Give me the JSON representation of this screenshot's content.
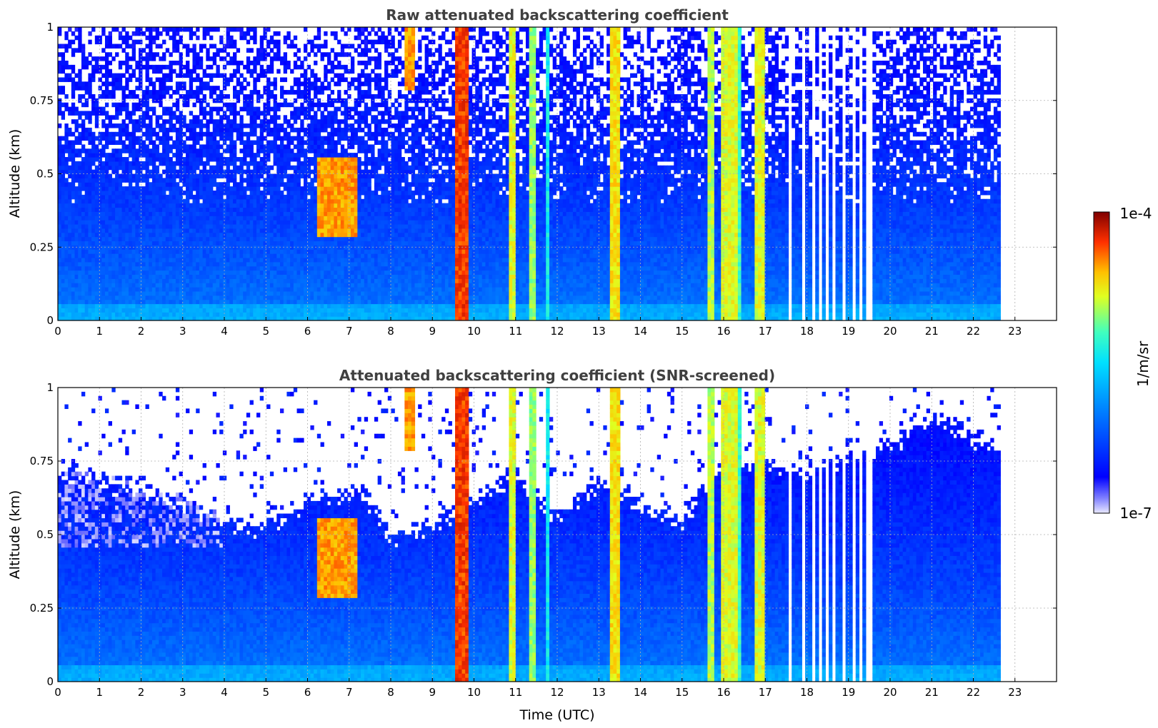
{
  "chart_data": [
    {
      "type": "heatmap",
      "title": "Raw attenuated backscattering coefficient",
      "xlabel": "",
      "ylabel": "Altitude (km)",
      "xlim": [
        0,
        24
      ],
      "ylim": [
        0,
        1
      ],
      "x_ticks": [
        "0",
        "1",
        "2",
        "3",
        "4",
        "5",
        "6",
        "7",
        "8",
        "9",
        "10",
        "11",
        "12",
        "13",
        "14",
        "15",
        "16",
        "17",
        "18",
        "19",
        "20",
        "21",
        "22",
        "23"
      ],
      "y_ticks": [
        "0",
        "0.25",
        "0.5",
        "0.75",
        "1"
      ],
      "data_end_time": 22.65,
      "grid": true,
      "colorscale": "jet-log",
      "background": {
        "surface_level": 1e-06,
        "aloft_level": 2e-07,
        "noisy": true
      },
      "features": [
        {
          "t0": 9.55,
          "t1": 9.85,
          "z0": 0,
          "z1": 1,
          "level": 5e-05
        },
        {
          "t0": 10.85,
          "t1": 11.0,
          "z0": 0,
          "z1": 1,
          "level": 1.5e-05
        },
        {
          "t0": 11.35,
          "t1": 11.5,
          "z0": 0,
          "z1": 1,
          "level": 1e-05
        },
        {
          "t0": 11.75,
          "t1": 11.85,
          "z0": 0,
          "z1": 1,
          "level": 4e-06
        },
        {
          "t0": 13.3,
          "t1": 13.5,
          "z0": 0,
          "z1": 1,
          "level": 2e-05
        },
        {
          "t0": 15.6,
          "t1": 15.75,
          "z0": 0,
          "z1": 1,
          "level": 1.2e-05
        },
        {
          "t0": 15.9,
          "t1": 16.3,
          "z0": 0,
          "z1": 1,
          "level": 1.5e-05
        },
        {
          "t0": 16.35,
          "t1": 16.45,
          "z0": 0,
          "z1": 1,
          "level": 6e-06
        },
        {
          "t0": 16.75,
          "t1": 16.95,
          "z0": 0,
          "z1": 1,
          "level": 1.5e-05
        },
        {
          "t0": 6.2,
          "t1": 7.2,
          "z0": 0.28,
          "z1": 0.55,
          "level": 3e-05
        },
        {
          "t0": 8.3,
          "t1": 8.6,
          "z0": 0.78,
          "z1": 1,
          "level": 3e-05
        }
      ],
      "missing_columns": [
        17.6,
        17.9,
        18.15,
        18.35,
        18.5,
        18.65,
        18.85,
        19.1,
        19.3,
        19.45,
        19.5
      ]
    },
    {
      "type": "heatmap",
      "title": "Attenuated backscattering coefficient (SNR-screened)",
      "xlabel": "Time (UTC)",
      "ylabel": "Altitude (km)",
      "xlim": [
        0,
        24
      ],
      "ylim": [
        0,
        1
      ],
      "x_ticks": [
        "0",
        "1",
        "2",
        "3",
        "4",
        "5",
        "6",
        "7",
        "8",
        "9",
        "10",
        "11",
        "12",
        "13",
        "14",
        "15",
        "16",
        "17",
        "18",
        "19",
        "20",
        "21",
        "22",
        "23"
      ],
      "y_ticks": [
        "0",
        "0.25",
        "0.5",
        "0.75",
        "1"
      ],
      "data_end_time": 22.65,
      "grid": true,
      "colorscale": "jet-log",
      "screened_top_km": [
        [
          0,
          0.72
        ],
        [
          2,
          0.65
        ],
        [
          4,
          0.55
        ],
        [
          5,
          0.52
        ],
        [
          6,
          0.62
        ],
        [
          7.3,
          0.65
        ],
        [
          8,
          0.5
        ],
        [
          9,
          0.52
        ],
        [
          10,
          0.62
        ],
        [
          11,
          0.7
        ],
        [
          12,
          0.55
        ],
        [
          13,
          0.68
        ],
        [
          14,
          0.6
        ],
        [
          15,
          0.55
        ],
        [
          16,
          0.75
        ],
        [
          18,
          0.72
        ],
        [
          20,
          0.8
        ],
        [
          21,
          0.9
        ],
        [
          22.65,
          0.78
        ]
      ],
      "missing_columns": [
        17.6,
        17.9,
        18.15,
        18.35,
        18.5,
        18.65,
        18.85,
        19.1,
        19.3,
        19.45,
        19.5
      ]
    }
  ],
  "colorbar": {
    "label": "1/m/sr",
    "max_label": "1e-4",
    "min_label": "1e-7",
    "min": 1e-07,
    "max": 0.0001,
    "scale": "log"
  }
}
